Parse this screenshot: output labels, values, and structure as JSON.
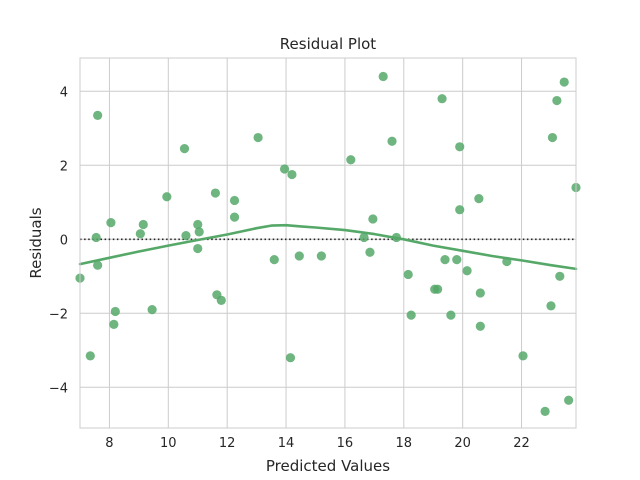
{
  "chart_data": {
    "type": "scatter",
    "title": "Residual Plot",
    "xlabel": "Predicted Values",
    "ylabel": "Residuals",
    "xlim": [
      7.0,
      23.85
    ],
    "ylim": [
      -5.1,
      4.9
    ],
    "xticks": [
      8,
      10,
      12,
      14,
      16,
      18,
      20,
      22
    ],
    "yticks": [
      -4,
      -2,
      0,
      2,
      4
    ],
    "grid": true,
    "reference_line": {
      "y": 0,
      "style": "dotted",
      "color": "#262626"
    },
    "point_color": "#55a868",
    "series": [
      {
        "points": [
          [
            7.0,
            -1.05
          ],
          [
            7.35,
            -3.15
          ],
          [
            7.55,
            0.05
          ],
          [
            7.6,
            3.35
          ],
          [
            7.6,
            -0.7
          ],
          [
            8.05,
            0.45
          ],
          [
            8.15,
            -2.3
          ],
          [
            8.2,
            -1.95
          ],
          [
            9.05,
            0.15
          ],
          [
            9.15,
            0.4
          ],
          [
            9.45,
            -1.9
          ],
          [
            9.95,
            1.15
          ],
          [
            10.55,
            2.45
          ],
          [
            10.6,
            0.1
          ],
          [
            11.0,
            0.4
          ],
          [
            11.0,
            -0.25
          ],
          [
            11.05,
            0.2
          ],
          [
            11.6,
            1.25
          ],
          [
            11.65,
            -1.5
          ],
          [
            11.8,
            -1.65
          ],
          [
            12.25,
            1.05
          ],
          [
            12.25,
            0.6
          ],
          [
            13.05,
            2.75
          ],
          [
            13.6,
            -0.55
          ],
          [
            13.95,
            1.9
          ],
          [
            14.15,
            -3.2
          ],
          [
            14.2,
            1.75
          ],
          [
            14.45,
            -0.45
          ],
          [
            15.2,
            -0.45
          ],
          [
            16.2,
            2.15
          ],
          [
            16.65,
            0.05
          ],
          [
            16.85,
            -0.35
          ],
          [
            16.95,
            0.55
          ],
          [
            17.3,
            4.4
          ],
          [
            17.6,
            2.65
          ],
          [
            17.75,
            0.05
          ],
          [
            18.15,
            -0.95
          ],
          [
            18.25,
            -2.05
          ],
          [
            19.05,
            -1.35
          ],
          [
            19.15,
            -1.35
          ],
          [
            19.3,
            3.8
          ],
          [
            19.4,
            -0.55
          ],
          [
            19.6,
            -2.05
          ],
          [
            19.8,
            -0.55
          ],
          [
            19.9,
            2.5
          ],
          [
            19.9,
            0.8
          ],
          [
            20.15,
            -0.85
          ],
          [
            20.55,
            1.1
          ],
          [
            20.6,
            -1.45
          ],
          [
            20.6,
            -2.35
          ],
          [
            21.5,
            -0.6
          ],
          [
            22.05,
            -3.15
          ],
          [
            22.8,
            -4.65
          ],
          [
            23.0,
            -1.8
          ],
          [
            23.05,
            2.75
          ],
          [
            23.2,
            3.75
          ],
          [
            23.3,
            -1.0
          ],
          [
            23.45,
            4.25
          ],
          [
            23.6,
            -4.35
          ],
          [
            23.85,
            1.4
          ]
        ]
      }
    ],
    "trend_line": {
      "color": "#55a868",
      "points": [
        [
          7.0,
          -0.67
        ],
        [
          8.0,
          -0.5
        ],
        [
          9.0,
          -0.33
        ],
        [
          10.0,
          -0.17
        ],
        [
          11.0,
          -0.02
        ],
        [
          12.0,
          0.13
        ],
        [
          13.0,
          0.3
        ],
        [
          13.5,
          0.37
        ],
        [
          14.0,
          0.38
        ],
        [
          14.5,
          0.35
        ],
        [
          15.0,
          0.32
        ],
        [
          16.0,
          0.25
        ],
        [
          17.0,
          0.14
        ],
        [
          18.0,
          0.0
        ],
        [
          19.0,
          -0.17
        ],
        [
          20.0,
          -0.31
        ],
        [
          21.0,
          -0.45
        ],
        [
          22.0,
          -0.57
        ],
        [
          23.0,
          -0.7
        ],
        [
          23.85,
          -0.8
        ]
      ]
    }
  }
}
